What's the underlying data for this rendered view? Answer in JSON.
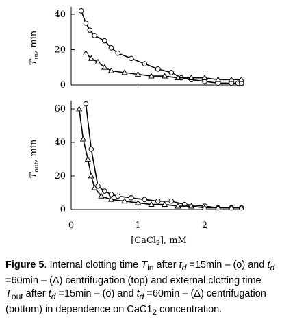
{
  "chart_data": [
    {
      "type": "line",
      "panel": "top",
      "ylabel_var": "T",
      "ylabel_sub": "in",
      "ylabel_unit": ", min",
      "xlim": [
        0,
        2.6
      ],
      "ylim": [
        0,
        45
      ],
      "yticks": [
        "0",
        "20",
        "40"
      ],
      "xticks": [],
      "grid": false,
      "series": [
        {
          "marker": "circle",
          "x": [
            0.15,
            0.22,
            0.28,
            0.35,
            0.5,
            0.6,
            0.7,
            0.9,
            1.1,
            1.3,
            1.5,
            1.65,
            1.8,
            2.0,
            2.2,
            2.4,
            2.5,
            2.55
          ],
          "y": [
            42,
            35,
            31,
            28,
            25,
            21,
            18,
            15,
            12,
            9,
            7,
            4,
            3,
            2,
            1,
            1,
            1,
            1
          ]
        },
        {
          "marker": "triangle",
          "x": [
            0.22,
            0.3,
            0.4,
            0.5,
            0.6,
            0.8,
            1.0,
            1.2,
            1.4,
            1.6,
            1.8,
            2.0,
            2.2,
            2.4,
            2.55
          ],
          "y": [
            18,
            15,
            13,
            10,
            8,
            7,
            6,
            5,
            5,
            4,
            4,
            4,
            3,
            3,
            3
          ]
        }
      ]
    },
    {
      "type": "line",
      "panel": "bottom",
      "ylabel_var": "T",
      "ylabel_sub": "out",
      "ylabel_unit": ", min",
      "xlabel": "[CaCl",
      "xlabel_sub": "2",
      "xlabel_unit": "], mM",
      "xlim": [
        0,
        2.6
      ],
      "ylim": [
        0,
        65
      ],
      "yticks": [
        "0",
        "20",
        "40",
        "60"
      ],
      "xticks": [
        "0",
        "1",
        "2"
      ],
      "grid": false,
      "series": [
        {
          "marker": "circle",
          "x": [
            0.22,
            0.3,
            0.4,
            0.5,
            0.6,
            0.7,
            0.9,
            1.1,
            1.3,
            1.5,
            1.7,
            2.0,
            2.2,
            2.4,
            2.55
          ],
          "y": [
            63,
            36,
            14,
            11,
            9,
            8,
            7,
            6,
            5,
            5,
            3,
            2,
            1,
            1,
            1
          ]
        },
        {
          "marker": "triangle",
          "x": [
            0.12,
            0.18,
            0.25,
            0.3,
            0.35,
            0.45,
            0.6,
            0.8,
            1.0,
            1.2,
            1.4,
            1.6,
            1.8,
            2.0,
            2.2,
            2.4,
            2.55
          ],
          "y": [
            60,
            42,
            30,
            20,
            13,
            8,
            6,
            5,
            4,
            3,
            3,
            2,
            2,
            1,
            1,
            1,
            1
          ]
        }
      ]
    }
  ],
  "caption": {
    "figure_label": "Figure 5",
    "text_1": ". Internal clotting time ",
    "t_in_var": "T",
    "t_in_sub": "in",
    "text_2": " after ",
    "td_var": "t",
    "td_sub": "d",
    "text_3": " =15min – (o) and ",
    "text_4": " =60min – (Δ) centrifugation (top) and external clotting time ",
    "t_out_var": "T",
    "t_out_sub": "out",
    "text_5": " after ",
    "text_6": " =15min – (o) and ",
    "text_7": " =60min – (Δ) centrifugation (bottom) in dependence on CaC1",
    "cac_sub": "2",
    "text_8": " concentration."
  }
}
